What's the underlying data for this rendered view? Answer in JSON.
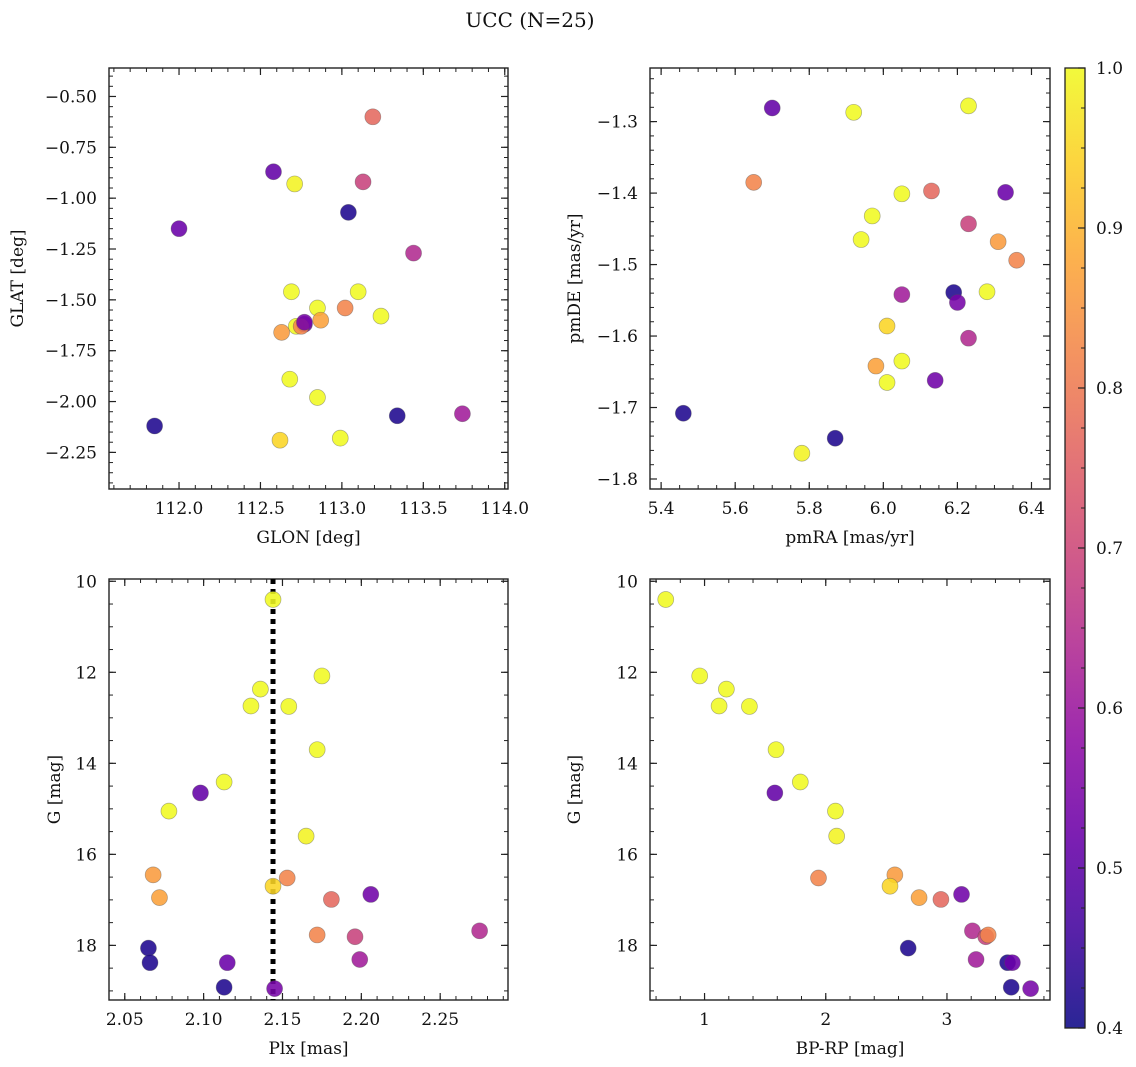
{
  "figure": {
    "title": "UCC (N=25)"
  },
  "chart_data": [
    {
      "id": "glon-glat",
      "type": "scatter",
      "title": "",
      "xlabel": "GLON [deg]",
      "ylabel": "GLAT [deg]",
      "xlim": [
        111.57,
        114.02
      ],
      "ylim": [
        -2.43,
        -0.36
      ],
      "y_inverted": false,
      "xticks": [
        112.0,
        112.5,
        113.0,
        113.5,
        114.0
      ],
      "xtick_labels": [
        "112.0",
        "112.5",
        "113.0",
        "113.5",
        "114.0"
      ],
      "yticks": [
        -0.5,
        -0.75,
        -1.0,
        -1.25,
        -1.5,
        -1.75,
        -2.0,
        -2.25
      ],
      "ytick_labels": [
        "−0.50",
        "−0.75",
        "−1.00",
        "−1.25",
        "−1.50",
        "−1.75",
        "−2.00",
        "−2.25"
      ],
      "x_minor_step": 0.1,
      "y_minor_step": 0.05,
      "grid": false,
      "x_field": "glon",
      "y_field": "glat"
    },
    {
      "id": "pmra-pmde",
      "type": "scatter",
      "title": "",
      "xlabel": "pmRA [mas/yr]",
      "ylabel": "pmDE [mas/yr]",
      "xlim": [
        5.37,
        6.45
      ],
      "ylim": [
        -1.814,
        -1.225
      ],
      "y_inverted": false,
      "xticks": [
        5.4,
        5.6,
        5.8,
        6.0,
        6.2,
        6.4
      ],
      "xtick_labels": [
        "5.4",
        "5.6",
        "5.8",
        "6.0",
        "6.2",
        "6.4"
      ],
      "yticks": [
        -1.3,
        -1.4,
        -1.5,
        -1.6,
        -1.7,
        -1.8
      ],
      "ytick_labels": [
        "−1.3",
        "−1.4",
        "−1.5",
        "−1.6",
        "−1.7",
        "−1.8"
      ],
      "x_minor_step": 0.05,
      "y_minor_step": 0.02,
      "grid": false,
      "x_field": "pmra",
      "y_field": "pmde"
    },
    {
      "id": "plx-g",
      "type": "scatter",
      "title": "",
      "xlabel": "Plx [mas]",
      "ylabel": "G [mag]",
      "xlim": [
        2.04,
        2.293
      ],
      "ylim": [
        19.2,
        9.95
      ],
      "y_inverted": true,
      "xticks": [
        2.05,
        2.1,
        2.15,
        2.2,
        2.25
      ],
      "xtick_labels": [
        "2.05",
        "2.10",
        "2.15",
        "2.20",
        "2.25"
      ],
      "yticks": [
        10,
        12,
        14,
        16,
        18
      ],
      "ytick_labels": [
        "10",
        "12",
        "14",
        "16",
        "18"
      ],
      "x_minor_step": 0.01,
      "y_minor_step": 0.5,
      "grid": false,
      "x_field": "plx",
      "y_field": "g",
      "vline": {
        "x": 2.144,
        "style": "dotted",
        "color": "#000000"
      }
    },
    {
      "id": "bprp-g",
      "type": "scatter",
      "title": "",
      "xlabel": "BP-RP [mag]",
      "ylabel": "G [mag]",
      "xlim": [
        0.55,
        3.85
      ],
      "ylim": [
        19.2,
        9.95
      ],
      "y_inverted": true,
      "xticks": [
        1,
        2,
        3
      ],
      "xtick_labels": [
        "1",
        "2",
        "3"
      ],
      "yticks": [
        10,
        12,
        14,
        16,
        18
      ],
      "ytick_labels": [
        "10",
        "12",
        "14",
        "16",
        "18"
      ],
      "x_minor_step": 0.2,
      "y_minor_step": 0.5,
      "grid": false,
      "x_field": "bprp",
      "y_field": "g"
    }
  ],
  "colorbar": {
    "cmap": "plasma",
    "range": [
      0.4,
      1.0
    ],
    "ticks": [
      0.4,
      0.5,
      0.6,
      0.7,
      0.8,
      0.9,
      1.0
    ],
    "tick_labels": [
      "0.4",
      "0.5",
      "0.6",
      "0.7",
      "0.8",
      "0.9",
      "1.0"
    ],
    "minor_step": 0.025
  },
  "stars": [
    {
      "glon": 112.69,
      "glat": -1.46,
      "pmra": 5.92,
      "pmde": -1.287,
      "plx": 2.144,
      "g": 10.4,
      "bprp": 0.68,
      "prob": 1.0
    },
    {
      "glon": 112.85,
      "glat": -1.98,
      "pmra": 6.05,
      "pmde": -1.635,
      "plx": 2.175,
      "g": 12.08,
      "bprp": 0.96,
      "prob": 1.0
    },
    {
      "glon": 113.1,
      "glat": -1.46,
      "pmra": 6.01,
      "pmde": -1.665,
      "plx": 2.136,
      "g": 12.37,
      "bprp": 1.18,
      "prob": 1.0
    },
    {
      "glon": 112.85,
      "glat": -1.54,
      "pmra": 5.94,
      "pmde": -1.465,
      "plx": 2.13,
      "g": 12.74,
      "bprp": 1.12,
      "prob": 1.0
    },
    {
      "glon": 113.24,
      "glat": -1.58,
      "pmra": 6.05,
      "pmde": -1.401,
      "plx": 2.154,
      "g": 12.75,
      "bprp": 1.37,
      "prob": 1.0
    },
    {
      "glon": 112.68,
      "glat": -1.89,
      "pmra": 6.28,
      "pmde": -1.538,
      "plx": 2.172,
      "g": 13.7,
      "bprp": 1.59,
      "prob": 1.0
    },
    {
      "glon": 112.99,
      "glat": -2.18,
      "pmra": 5.97,
      "pmde": -1.432,
      "plx": 2.113,
      "g": 14.41,
      "bprp": 1.79,
      "prob": 1.0
    },
    {
      "glon": 112.58,
      "glat": -0.87,
      "pmra": 5.7,
      "pmde": -1.281,
      "plx": 2.098,
      "g": 14.65,
      "bprp": 1.58,
      "prob": 0.51
    },
    {
      "glon": 112.72,
      "glat": -1.63,
      "pmra": 6.23,
      "pmde": -1.278,
      "plx": 2.078,
      "g": 15.05,
      "bprp": 2.08,
      "prob": 1.0
    },
    {
      "glon": 112.71,
      "glat": -0.93,
      "pmra": 5.78,
      "pmde": -1.764,
      "plx": 2.165,
      "g": 15.6,
      "bprp": 2.09,
      "prob": 0.99
    },
    {
      "glon": 112.63,
      "glat": -1.66,
      "pmra": 6.31,
      "pmde": -1.468,
      "plx": 2.068,
      "g": 16.45,
      "bprp": 2.57,
      "prob": 0.86
    },
    {
      "glon": 113.02,
      "glat": -1.54,
      "pmra": 5.65,
      "pmde": -1.385,
      "plx": 2.153,
      "g": 16.52,
      "bprp": 1.94,
      "prob": 0.82
    },
    {
      "glon": 112.62,
      "glat": -2.19,
      "pmra": 6.01,
      "pmde": -1.586,
      "plx": 2.144,
      "g": 16.7,
      "bprp": 2.53,
      "prob": 0.95
    },
    {
      "glon": 112.77,
      "glat": -1.62,
      "pmra": 6.14,
      "pmde": -1.662,
      "plx": 2.206,
      "g": 16.88,
      "bprp": 3.12,
      "prob": 0.53
    },
    {
      "glon": 112.87,
      "glat": -1.6,
      "pmra": 5.98,
      "pmde": -1.642,
      "plx": 2.072,
      "g": 16.95,
      "bprp": 2.77,
      "prob": 0.87
    },
    {
      "glon": 113.19,
      "glat": -0.6,
      "pmra": 6.13,
      "pmde": -1.397,
      "plx": 2.181,
      "g": 16.99,
      "bprp": 2.95,
      "prob": 0.77
    },
    {
      "glon": 113.44,
      "glat": -1.27,
      "pmra": 6.23,
      "pmde": -1.603,
      "plx": 2.275,
      "g": 17.68,
      "bprp": 3.21,
      "prob": 0.64
    },
    {
      "glon": 113.13,
      "glat": -0.92,
      "pmra": 6.23,
      "pmde": -1.443,
      "plx": 2.196,
      "g": 17.81,
      "bprp": 3.32,
      "prob": 0.69
    },
    {
      "glon": 112.75,
      "glat": -1.63,
      "pmra": 6.36,
      "pmde": -1.494,
      "plx": 2.172,
      "g": 17.77,
      "bprp": 3.34,
      "prob": 0.82
    },
    {
      "glon": 111.85,
      "glat": -2.12,
      "pmra": 5.87,
      "pmde": -1.743,
      "plx": 2.065,
      "g": 18.06,
      "bprp": 2.68,
      "prob": 0.42
    },
    {
      "glon": 113.74,
      "glat": -2.06,
      "pmra": 6.05,
      "pmde": -1.542,
      "plx": 2.199,
      "g": 18.31,
      "bprp": 3.24,
      "prob": 0.61
    },
    {
      "glon": 113.34,
      "glat": -2.07,
      "pmra": 5.46,
      "pmde": -1.708,
      "plx": 2.066,
      "g": 18.38,
      "bprp": 3.5,
      "prob": 0.42
    },
    {
      "glon": 112.0,
      "glat": -1.15,
      "pmra": 6.33,
      "pmde": -1.399,
      "plx": 2.115,
      "g": 18.38,
      "bprp": 3.54,
      "prob": 0.52
    },
    {
      "glon": 113.04,
      "glat": -1.07,
      "pmra": 6.19,
      "pmde": -1.539,
      "plx": 2.113,
      "g": 18.92,
      "bprp": 3.53,
      "prob": 0.42
    },
    {
      "glon": 112.77,
      "glat": -1.61,
      "pmra": 6.2,
      "pmde": -1.553,
      "plx": 2.145,
      "g": 18.95,
      "bprp": 3.69,
      "prob": 0.54
    }
  ]
}
